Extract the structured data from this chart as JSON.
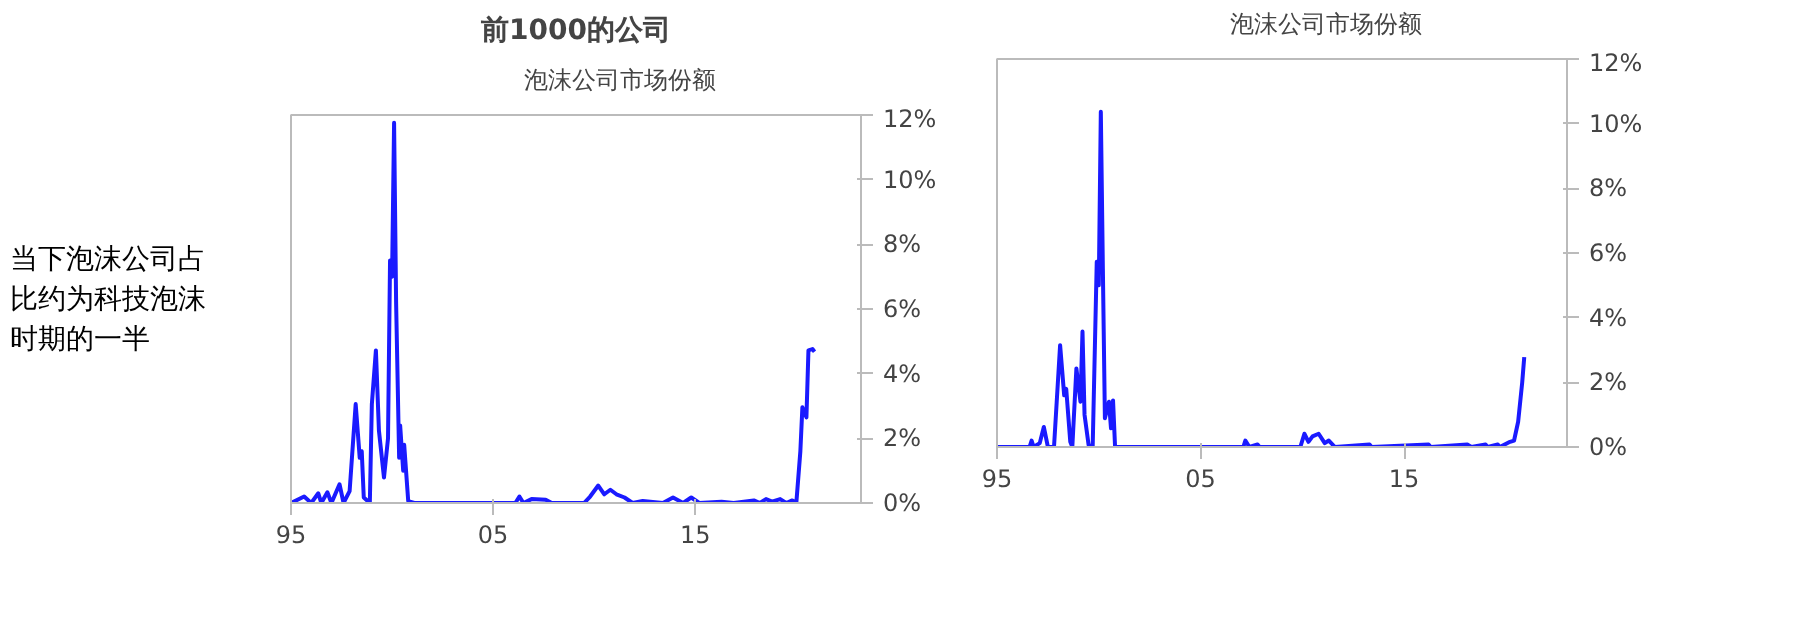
{
  "chart_data": [
    {
      "type": "line",
      "title": "前1000的公司",
      "annotations": [
        "当下泡沫公司占比约为科技泡沫时期的一半"
      ],
      "legend": "top",
      "grid": false,
      "marker": "none",
      "line_style": "solid",
      "xlim": [
        1995,
        2023.2
      ],
      "xticks": [
        {
          "value": 1995,
          "label": "95"
        },
        {
          "value": 2005,
          "label": "05"
        },
        {
          "value": 2015,
          "label": "15"
        }
      ],
      "ylim": [
        0,
        12
      ],
      "yticks": [
        {
          "value": 0,
          "label": "0%"
        },
        {
          "value": 2,
          "label": "2%"
        },
        {
          "value": 4,
          "label": "4%"
        },
        {
          "value": 6,
          "label": "6%"
        },
        {
          "value": 8,
          "label": "8%"
        },
        {
          "value": 10,
          "label": "10%"
        },
        {
          "value": 12,
          "label": "12%"
        }
      ],
      "series": [
        {
          "name": "泡沫公司市场份额",
          "color": "#1a1aff",
          "x": [
            1995,
            1995.65,
            1996.0,
            1996.35,
            1996.5,
            1996.8,
            1997.0,
            1997.4,
            1997.6,
            1997.9,
            1998.2,
            1998.4,
            1998.5,
            1998.6,
            1998.9,
            1999.0,
            1999.2,
            1999.35,
            1999.6,
            1999.8,
            1999.9,
            2000.0,
            2000.1,
            2000.2,
            2000.35,
            2000.4,
            2000.55,
            2000.6,
            2000.8,
            2001.1,
            2006.1,
            2006.3,
            2006.5,
            2006.9,
            2007.6,
            2007.9,
            2009.5,
            2009.8,
            2010.2,
            2010.5,
            2010.8,
            2011.1,
            2011.5,
            2011.9,
            2012.4,
            2013.4,
            2013.9,
            2014.4,
            2014.8,
            2015.2,
            2016.3,
            2016.9,
            2017.9,
            2018.2,
            2018.5,
            2018.8,
            2019.2,
            2019.5,
            2019.8,
            2020.0,
            2020.2,
            2020.3,
            2020.5,
            2020.6,
            2020.8,
            2020.9
          ],
          "values": [
            0,
            0.2,
            0,
            0.3,
            0,
            0.33,
            0,
            0.58,
            0,
            0.37,
            3.06,
            1.4,
            1.6,
            0.17,
            0,
            3.06,
            4.72,
            2.24,
            0.79,
            2.0,
            7.5,
            7.0,
            11.76,
            6.2,
            1.4,
            2.4,
            1.0,
            1.8,
            0.06,
            0,
            0,
            0.2,
            0,
            0.12,
            0.1,
            0,
            0,
            0.2,
            0.54,
            0.27,
            0.41,
            0.27,
            0.17,
            0,
            0.06,
            0,
            0.17,
            0,
            0.17,
            0,
            0.04,
            0,
            0.08,
            0,
            0.12,
            0.04,
            0.12,
            0,
            0.08,
            0,
            1.6,
            2.96,
            2.65,
            4.72,
            4.76,
            4.68
          ]
        }
      ]
    },
    {
      "type": "line",
      "legend": "top",
      "grid": false,
      "marker": "none",
      "line_style": "solid",
      "xlim": [
        1995,
        2023
      ],
      "xticks": [
        {
          "value": 1995,
          "label": "95"
        },
        {
          "value": 2005,
          "label": "05"
        },
        {
          "value": 2015,
          "label": "15"
        }
      ],
      "ylim": [
        0,
        12
      ],
      "yticks": [
        {
          "value": 0,
          "label": "0%"
        },
        {
          "value": 2,
          "label": "2%"
        },
        {
          "value": 4,
          "label": "4%"
        },
        {
          "value": 6,
          "label": "6%"
        },
        {
          "value": 8,
          "label": "8%"
        },
        {
          "value": 10,
          "label": "10%"
        },
        {
          "value": 12,
          "label": "12%"
        }
      ],
      "series": [
        {
          "name": "泡沫公司市场份额",
          "color": "#1a1aff",
          "x": [
            1995,
            1996.6,
            1996.7,
            1996.8,
            1997.1,
            1997.3,
            1997.5,
            1997.8,
            1998.1,
            1998.3,
            1998.4,
            1998.6,
            1998.7,
            1998.9,
            1999.1,
            1999.2,
            1999.3,
            1999.5,
            1999.7,
            1999.9,
            2000.0,
            2000.1,
            2000.2,
            2000.3,
            2000.5,
            2000.6,
            2000.7,
            2000.8,
            2007.1,
            2007.2,
            2007.4,
            2007.8,
            2007.9,
            2009.9,
            2010.1,
            2010.3,
            2010.5,
            2010.8,
            2011.1,
            2011.3,
            2011.6,
            2013.3,
            2013.4,
            2016.2,
            2016.3,
            2018.1,
            2018.3,
            2019.0,
            2019.1,
            2019.6,
            2019.7,
            2020.2,
            2020.4,
            2020.6,
            2020.8,
            2020.9
          ],
          "values": [
            0,
            0,
            0.2,
            0,
            0.12,
            0.62,
            0,
            0,
            3.15,
            1.6,
            1.8,
            0.16,
            0,
            2.43,
            1.4,
            3.57,
            1.0,
            0.06,
            0,
            5.73,
            5.0,
            10.37,
            5.53,
            0.89,
            1.4,
            0.58,
            1.44,
            0,
            0,
            0.2,
            0,
            0.08,
            0,
            0,
            0.41,
            0.16,
            0.33,
            0.41,
            0.12,
            0.2,
            0,
            0.08,
            0,
            0.08,
            0,
            0.08,
            0,
            0.08,
            0,
            0.08,
            0,
            0.16,
            0.2,
            0.78,
            2.0,
            2.78
          ]
        }
      ]
    }
  ]
}
